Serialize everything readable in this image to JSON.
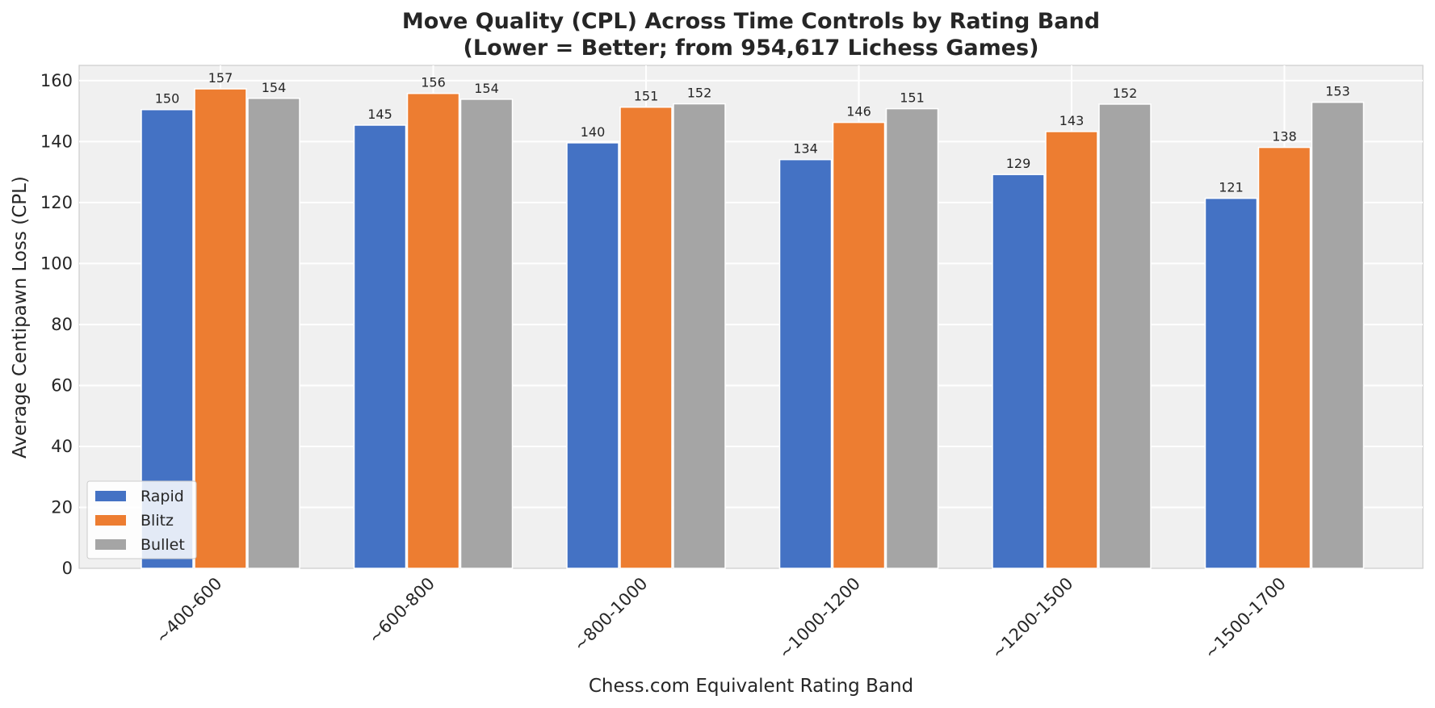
{
  "chart_data": {
    "type": "bar",
    "title_line1": "Move Quality (CPL) Across Time Controls by Rating Band",
    "title_line2": "(Lower = Better; from 954,617 Lichess Games)",
    "xlabel": "Chess.com Equivalent Rating Band",
    "ylabel": "Average Centipawn Loss (CPL)",
    "categories": [
      "~400-600",
      "~600-800",
      "~800-1000",
      "~1000-1200",
      "~1200-1500",
      "~1500-1700"
    ],
    "series": [
      {
        "name": "Rapid",
        "color": "#4472c4",
        "values": [
          150.5,
          145.4,
          139.6,
          134.1,
          129.2,
          121.4
        ],
        "labels": [
          "150",
          "145",
          "140",
          "134",
          "129",
          "121"
        ]
      },
      {
        "name": "Blitz",
        "color": "#ed7d31",
        "values": [
          157.3,
          155.8,
          151.3,
          146.3,
          143.3,
          138.1
        ],
        "labels": [
          "157",
          "156",
          "151",
          "146",
          "143",
          "138"
        ]
      },
      {
        "name": "Bullet",
        "color": "#a5a5a5",
        "values": [
          154.2,
          153.9,
          152.4,
          150.8,
          152.3,
          152.9
        ],
        "labels": [
          "154",
          "154",
          "152",
          "151",
          "152",
          "153"
        ]
      }
    ],
    "yticks": [
      "0",
      "20",
      "40",
      "60",
      "80",
      "100",
      "120",
      "140",
      "160"
    ],
    "ylim": [
      0,
      165
    ],
    "grid": true,
    "legend_position": "lower-left",
    "background_color": "#f0f0f0"
  }
}
